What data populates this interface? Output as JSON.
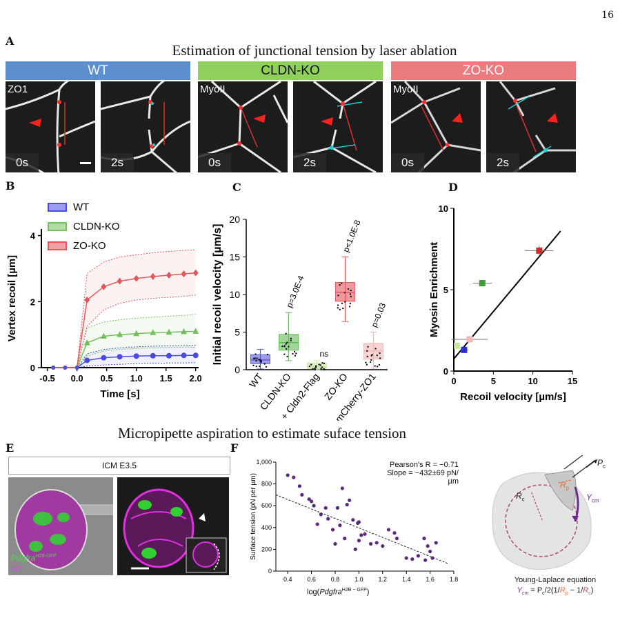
{
  "page_number": "16",
  "panel_letters": {
    "A": "A",
    "B": "B",
    "C": "C",
    "D": "D",
    "E": "E",
    "F": "F"
  },
  "panel_a": {
    "title": "Estimation of junctional tension by laser ablation",
    "conditions": [
      {
        "label": "WT",
        "color": "#5b8fcf",
        "stain": "ZO1"
      },
      {
        "label": "CLDN-KO",
        "color": "#8fd05a",
        "stain": "MyoII"
      },
      {
        "label": "ZO-KO",
        "color": "#ec7b7f",
        "stain": "MyoII"
      }
    ],
    "times": [
      "0s",
      "2s"
    ]
  },
  "panel_b": {
    "chart_data": {
      "type": "line",
      "xlabel": "Time [s]",
      "ylabel": "Vertex recoil [µm]",
      "xlim": [
        -0.6,
        2.05
      ],
      "ylim": [
        0,
        4.2
      ],
      "xticks": [
        "-0.5",
        "0.0",
        "0.5",
        "1.0",
        "1.5",
        "2.0"
      ],
      "yticks": [
        "0",
        "2",
        "4"
      ],
      "x": [
        -0.4,
        -0.2,
        0.0,
        0.17,
        0.45,
        0.72,
        1.0,
        1.28,
        1.55,
        1.8,
        2.0
      ],
      "legend_position": "top-left",
      "series": [
        {
          "name": "WT",
          "color": "#4a4ae6",
          "values": [
            0,
            0,
            0,
            0.22,
            0.3,
            0.33,
            0.35,
            0.36,
            0.36,
            0.37,
            0.37
          ],
          "upper": [
            0,
            0,
            0,
            0.42,
            0.55,
            0.6,
            0.63,
            0.65,
            0.66,
            0.67,
            0.68
          ],
          "lower": [
            0,
            0,
            0,
            0.05,
            0.08,
            0.1,
            0.12,
            0.13,
            0.14,
            0.14,
            0.15
          ]
        },
        {
          "name": "CLDN-KO",
          "color": "#72c05a",
          "values": [
            0,
            0,
            0,
            0.75,
            0.95,
            1.0,
            1.03,
            1.06,
            1.07,
            1.09,
            1.1
          ],
          "upper": [
            0,
            0,
            0,
            1.2,
            1.38,
            1.45,
            1.5,
            1.53,
            1.56,
            1.58,
            1.62
          ],
          "lower": [
            0,
            0,
            0,
            0.35,
            0.5,
            0.55,
            0.58,
            0.6,
            0.61,
            0.62,
            0.62
          ]
        },
        {
          "name": "ZO-KO",
          "color": "#e2575c",
          "values": [
            0,
            0,
            0,
            2.05,
            2.45,
            2.62,
            2.7,
            2.76,
            2.8,
            2.84,
            2.87
          ],
          "upper": [
            0,
            0,
            0,
            2.85,
            3.2,
            3.35,
            3.42,
            3.48,
            3.52,
            3.55,
            3.57
          ],
          "lower": [
            0,
            0,
            0,
            1.25,
            1.75,
            1.95,
            2.05,
            2.1,
            2.13,
            2.16,
            2.2
          ]
        }
      ]
    }
  },
  "panel_c": {
    "chart_data": {
      "type": "box",
      "ylabel": "Initial recoil velocity [µm/s]",
      "ylim": [
        0,
        20
      ],
      "yticks": [
        "0",
        "5",
        "10",
        "15",
        "20"
      ],
      "categories": [
        "WT",
        "CLDN-KO",
        "+ Cldn2-Flag",
        "ZO-KO",
        "+ mCherry-ZO1"
      ],
      "boxes": [
        {
          "color": "#5b5bdc",
          "min": 0.1,
          "q1": 0.8,
          "median": 1.3,
          "q3": 2.0,
          "max": 2.7,
          "annotation": ""
        },
        {
          "color": "#66b85a",
          "min": 1.2,
          "q1": 2.6,
          "median": 3.6,
          "q3": 4.7,
          "max": 7.6,
          "annotation": "p=3.0E-4"
        },
        {
          "color": "#c8e6a0",
          "min": 0.0,
          "q1": 0.15,
          "median": 0.4,
          "q3": 0.9,
          "max": 1.2,
          "annotation": "ns"
        },
        {
          "color": "#e2575c",
          "min": 6.4,
          "q1": 9.1,
          "median": 10.3,
          "q3": 11.6,
          "max": 15.0,
          "annotation": "p<1.0E-8"
        },
        {
          "color": "#f2b8b8",
          "min": 0.2,
          "q1": 1.4,
          "median": 2.5,
          "q3": 3.5,
          "max": 5.0,
          "annotation": "p=0.03"
        }
      ]
    }
  },
  "panel_d": {
    "chart_data": {
      "type": "scatter",
      "xlabel": "Recoil velocity [µm/s]",
      "ylabel": "Myosin Enrichment",
      "xlim": [
        0,
        15
      ],
      "ylim": [
        0,
        10
      ],
      "xticks": [
        "0",
        "5",
        "10",
        "15"
      ],
      "yticks": [
        "0",
        "5",
        "10"
      ],
      "points": [
        {
          "x": 1.3,
          "y": 1.3,
          "xerr": 0.5,
          "yerr": 0.15,
          "color": "#3030d0"
        },
        {
          "x": 3.6,
          "y": 5.4,
          "xerr": 1.2,
          "yerr": 0.2,
          "color": "#3f9a3a"
        },
        {
          "x": 0.4,
          "y": 1.55,
          "xerr": 0.3,
          "yerr": 0.1,
          "color": "#c8e6a0"
        },
        {
          "x": 10.8,
          "y": 7.4,
          "xerr": 1.8,
          "yerr": 0.3,
          "color": "#d22b2b"
        },
        {
          "x": 2.0,
          "y": 1.95,
          "xerr": 2.3,
          "yerr": 0.1,
          "color": "#f2b8b8"
        }
      ],
      "fit_line": {
        "x": [
          0,
          13.5
        ],
        "y": [
          0.75,
          8.6
        ]
      }
    }
  },
  "panel_e": {
    "title": "Micropipette aspiration to estimate suface tension",
    "box_label": "ICM E3.5",
    "legend_gene": "Pdgfra",
    "legend_gene_sup": "H2B-GFP",
    "legend_mt": "mT"
  },
  "panel_f": {
    "stats_line1": "Pearson's R = −0.71",
    "stats_line2": "Slope = −432±69 pN/µm",
    "chart_data": {
      "type": "scatter",
      "ylabel": "Surface tension (pN per µm)",
      "xlabel_pre": "log(",
      "xlabel_gene": "Pdgfra",
      "xlabel_sup": "H2B − GFP",
      "xlabel_post": ")",
      "xlim": [
        0.3,
        1.8
      ],
      "ylim": [
        0,
        1000
      ],
      "xticks": [
        "0.4",
        "0.6",
        "0.8",
        "1.0",
        "1.2",
        "1.4",
        "1.6",
        "1.8"
      ],
      "yticks": [
        "0",
        "200",
        "400",
        "600",
        "800",
        "1,000"
      ],
      "points": [
        [
          0.4,
          880
        ],
        [
          0.45,
          860
        ],
        [
          0.5,
          780
        ],
        [
          0.52,
          700
        ],
        [
          0.58,
          660
        ],
        [
          0.6,
          640
        ],
        [
          0.62,
          600
        ],
        [
          0.65,
          430
        ],
        [
          0.68,
          520
        ],
        [
          0.72,
          580
        ],
        [
          0.74,
          480
        ],
        [
          0.78,
          380
        ],
        [
          0.8,
          250
        ],
        [
          0.82,
          580
        ],
        [
          0.84,
          420
        ],
        [
          0.86,
          760
        ],
        [
          0.88,
          300
        ],
        [
          0.9,
          610
        ],
        [
          0.92,
          650
        ],
        [
          0.95,
          470
        ],
        [
          0.97,
          200
        ],
        [
          0.99,
          440
        ],
        [
          1.0,
          280
        ],
        [
          1.02,
          330
        ],
        [
          1.05,
          340
        ],
        [
          1.1,
          250
        ],
        [
          1.15,
          260
        ],
        [
          1.2,
          230
        ],
        [
          1.25,
          380
        ],
        [
          1.3,
          350
        ],
        [
          1.32,
          300
        ],
        [
          1.4,
          120
        ],
        [
          1.45,
          110
        ],
        [
          1.5,
          140
        ],
        [
          1.55,
          300
        ],
        [
          1.56,
          100
        ],
        [
          1.58,
          230
        ],
        [
          1.6,
          180
        ],
        [
          1.62,
          120
        ],
        [
          1.65,
          260
        ],
        [
          1.0,
          450
        ]
      ],
      "fit_line": {
        "x": [
          0.3,
          1.75
        ],
        "y": [
          700,
          70
        ]
      }
    }
  },
  "diagram": {
    "rc": "R",
    "rc_sub": "c",
    "rp": "R",
    "rp_sub": "p",
    "ycm": "Y",
    "ycm_sub": "cm",
    "pc": "P",
    "pc_sub": "c",
    "equation_title": "Young-Laplace equation",
    "eq_y": "Y",
    "eq_y_sub": "cm",
    "eq_mid": " = P",
    "eq_pc_sub": "c",
    "eq_frac": "/2(1/",
    "eq_rp": "R",
    "eq_rp_sub": "p",
    "eq_minus": " − 1/",
    "eq_rc": "R",
    "eq_rc_sub": "c",
    "eq_end": ")"
  }
}
